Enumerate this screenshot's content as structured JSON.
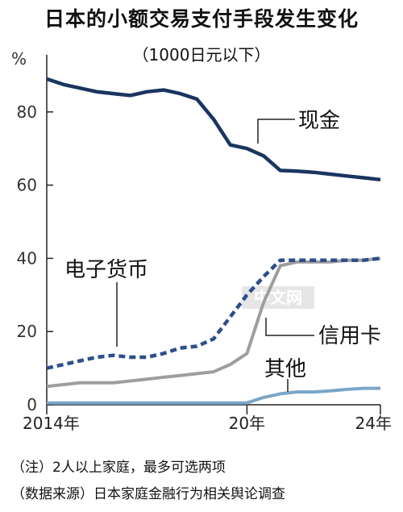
{
  "title": "日本的小额交易支付手段发生变化",
  "subtitle": "（1000日元以下）",
  "watermark": "中文网",
  "notes": [
    "（注）2人以上家庭，最多可选两项",
    "（数据来源）日本家庭金融行为相关舆论调查"
  ],
  "colors": {
    "cash": "#1a3560",
    "e_money": "#2c4f8a",
    "credit": "#9e9e9e",
    "other": "#7aa6c8"
  },
  "chart_data": {
    "type": "line",
    "ylabel": "%",
    "ylim": [
      0,
      100
    ],
    "yticks": [
      0,
      20,
      40,
      60,
      80
    ],
    "xlim": [
      2014,
      2024
    ],
    "xticks": [
      {
        "value": 2014,
        "label": "2014年"
      },
      {
        "value": 2020,
        "label": "20年"
      },
      {
        "value": 2024,
        "label": "24年"
      }
    ],
    "grid": false,
    "series": [
      {
        "name": "现金",
        "style": "solid",
        "points": [
          [
            2014,
            89
          ],
          [
            2014.5,
            87.5
          ],
          [
            2015,
            86.5
          ],
          [
            2015.5,
            85.5
          ],
          [
            2016,
            85
          ],
          [
            2016.5,
            84.5
          ],
          [
            2017,
            85.5
          ],
          [
            2017.5,
            86
          ],
          [
            2018,
            85
          ],
          [
            2018.5,
            83.5
          ],
          [
            2019,
            78
          ],
          [
            2019.5,
            71
          ],
          [
            2020,
            70
          ],
          [
            2020.5,
            68
          ],
          [
            2021,
            64
          ],
          [
            2021.5,
            63.8
          ],
          [
            2022,
            63.5
          ],
          [
            2022.5,
            63
          ],
          [
            2023,
            62.5
          ],
          [
            2023.5,
            62
          ],
          [
            2024,
            61.5
          ]
        ]
      },
      {
        "name": "电子货币",
        "style": "dashed",
        "points": [
          [
            2014,
            10
          ],
          [
            2014.5,
            11
          ],
          [
            2015,
            12
          ],
          [
            2015.5,
            13
          ],
          [
            2016,
            13.5
          ],
          [
            2016.5,
            13
          ],
          [
            2017,
            13
          ],
          [
            2017.5,
            14
          ],
          [
            2018,
            15.5
          ],
          [
            2018.5,
            16
          ],
          [
            2019,
            18
          ],
          [
            2019.5,
            24
          ],
          [
            2020,
            30
          ],
          [
            2020.5,
            35
          ],
          [
            2021,
            39.5
          ],
          [
            2021.5,
            39.5
          ],
          [
            2022,
            39.5
          ],
          [
            2022.5,
            39.5
          ],
          [
            2023,
            39.5
          ],
          [
            2023.5,
            39.5
          ],
          [
            2024,
            40
          ]
        ]
      },
      {
        "name": "信用卡",
        "style": "solid",
        "points": [
          [
            2014,
            5
          ],
          [
            2014.5,
            5.5
          ],
          [
            2015,
            6
          ],
          [
            2015.5,
            6
          ],
          [
            2016,
            6
          ],
          [
            2016.5,
            6.5
          ],
          [
            2017,
            7
          ],
          [
            2017.5,
            7.5
          ],
          [
            2018,
            8
          ],
          [
            2018.5,
            8.5
          ],
          [
            2019,
            9
          ],
          [
            2019.5,
            11
          ],
          [
            2020,
            14
          ],
          [
            2020.5,
            28
          ],
          [
            2021,
            38
          ],
          [
            2021.5,
            39
          ],
          [
            2022,
            39
          ],
          [
            2022.5,
            39
          ],
          [
            2023,
            39.5
          ],
          [
            2023.5,
            39.5
          ],
          [
            2024,
            40
          ]
        ]
      },
      {
        "name": "其他",
        "style": "solid",
        "points": [
          [
            2014,
            0.5
          ],
          [
            2015,
            0.5
          ],
          [
            2016,
            0.5
          ],
          [
            2017,
            0.5
          ],
          [
            2018,
            0.5
          ],
          [
            2019,
            0.5
          ],
          [
            2020,
            0.5
          ],
          [
            2020.5,
            2
          ],
          [
            2021,
            3
          ],
          [
            2021.5,
            3.5
          ],
          [
            2022,
            3.5
          ],
          [
            2022.5,
            3.8
          ],
          [
            2023,
            4.2
          ],
          [
            2023.5,
            4.5
          ],
          [
            2024,
            4.5
          ]
        ]
      }
    ]
  }
}
